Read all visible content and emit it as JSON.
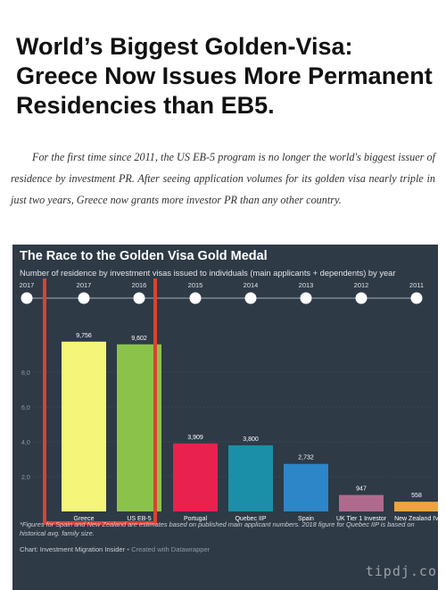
{
  "article": {
    "headline": "World’s Biggest Golden-Visa: Greece Now Issues More Permanent Residencies than EB5.",
    "lede": "For the first time since 2011, the US EB-5 program is no longer the world's biggest issuer of residence by investment PR. After seeing application volumes for its golden visa nearly triple in just two years, Greece now grants more investor PR than any other country."
  },
  "chart_data": {
    "type": "bar",
    "title": "The Race to the Golden Visa Gold Medal",
    "subtitle": "Number of residence by investment visas issued to individuals (main applicants + dependents) by year",
    "categories": [
      "Greece",
      "US EB-5",
      "Portugal",
      "Quebec IIP",
      "Spain",
      "UK Tier 1 Investor",
      "New Zealand IV"
    ],
    "years": [
      "2017",
      "2017",
      "2016",
      "2015",
      "2014",
      "2013",
      "2012",
      "2011"
    ],
    "values": [
      9756,
      9602,
      3909,
      3800,
      2732,
      947,
      558
    ],
    "value_labels": [
      "9,756",
      "9,602",
      "3,909",
      "3,800",
      "2,732",
      "947",
      "558"
    ],
    "colors": [
      "#f5f57a",
      "#8bc34a",
      "#e8214f",
      "#1b8fa8",
      "#2d86c8",
      "#b06a8d",
      "#f0a240"
    ],
    "y_ticks": [
      "2,0",
      "4,0",
      "6,0",
      "8,0"
    ],
    "ylim": [
      0,
      12000
    ],
    "highlight_color": "#d9432f",
    "footnote": "*Figures for Spain and New Zealand are estimates based on published main applicant numbers. 2018 figure for Quebec IIP is based on historical avg. family size.",
    "credit": "Chart: Investment Migration Insider",
    "credit_tool": " • Created with Datawrapper"
  },
  "watermark": "tipdj.co"
}
